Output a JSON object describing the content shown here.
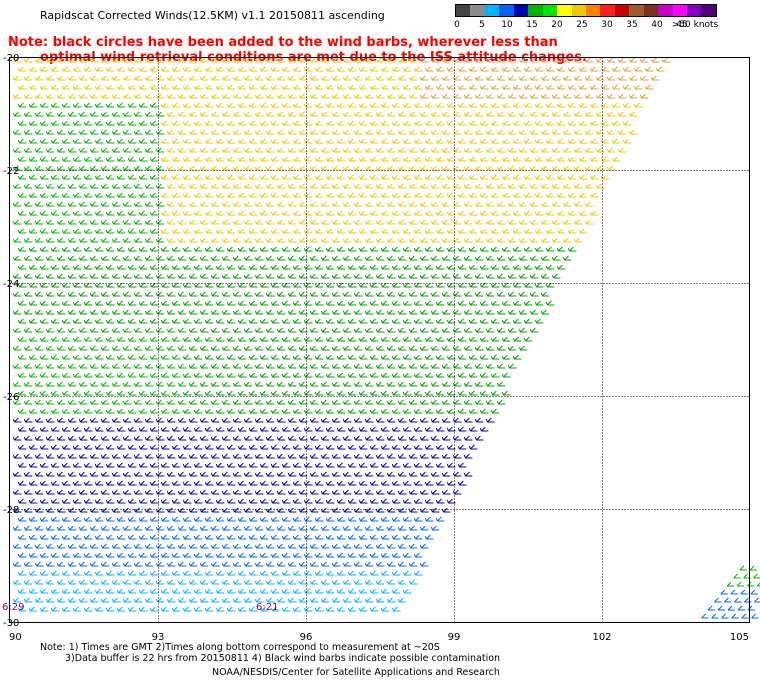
{
  "title": "Rapidscat Corrected Winds(12.5KM) v1.1 20150811 ascending",
  "note_lines": [
    "Note: black circles have been added to the wind barbs, wherever less than",
    "optimal wind retrieval conditions are met due to the ISS attitude changes."
  ],
  "legend": {
    "colors": [
      "#444444",
      "#8c8c8c",
      "#00b4ff",
      "#0064ff",
      "#0000b4",
      "#00b400",
      "#00e600",
      "#ffff00",
      "#f0c800",
      "#ff7f00",
      "#ff1e1e",
      "#c80000",
      "#a05a2d",
      "#78321e",
      "#c800c8",
      "#ff00ff",
      "#8200c8",
      "#500078"
    ],
    "labels": [
      "0",
      "5",
      "10",
      "15",
      "20",
      "25",
      "30",
      "35",
      "40",
      "45",
      ">50 knots"
    ]
  },
  "axes": {
    "lat_labels": [
      "-20",
      "-22",
      "-24",
      "-26",
      "-28",
      "-30"
    ],
    "lon_labels": [
      "90",
      "93",
      "96",
      "99",
      "102",
      "105"
    ]
  },
  "time_labels": [
    "6:29",
    "6:21"
  ],
  "footer": {
    "line1": "Note: 1) Times are GMT 2)Times along bottom correspond to measurement at ~20S",
    "line2": "3)Data buffer is 22 hrs from 20150811 4) Black wind barbs indicate possible contamination",
    "credit": "NOAA/NESDIS/Center for Satellite Applications and Research"
  }
}
